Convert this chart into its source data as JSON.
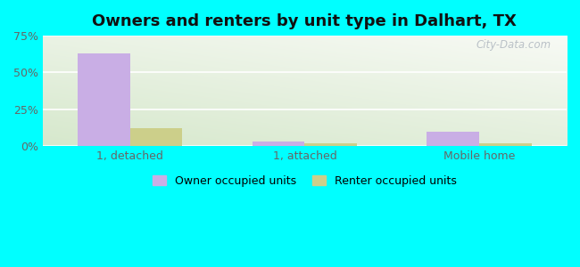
{
  "title": "Owners and renters by unit type in Dalhart, TX",
  "categories": [
    "1, detached",
    "1, attached",
    "Mobile home"
  ],
  "owner_values": [
    63.0,
    3.0,
    10.0
  ],
  "renter_values": [
    12.0,
    2.0,
    2.0
  ],
  "owner_color": "#c9aee5",
  "renter_color": "#cccf8a",
  "ylim": [
    0,
    75
  ],
  "yticks": [
    0,
    25,
    50,
    75
  ],
  "ytick_labels": [
    "0%",
    "25%",
    "50%",
    "75%"
  ],
  "legend_owner": "Owner occupied units",
  "legend_renter": "Renter occupied units",
  "bar_width": 0.3,
  "title_fontsize": 13,
  "axis_fontsize": 9,
  "watermark": "City-Data.com",
  "outer_bg": "#00ffff",
  "grid_color": "#ffffff",
  "tick_color": "#666666"
}
